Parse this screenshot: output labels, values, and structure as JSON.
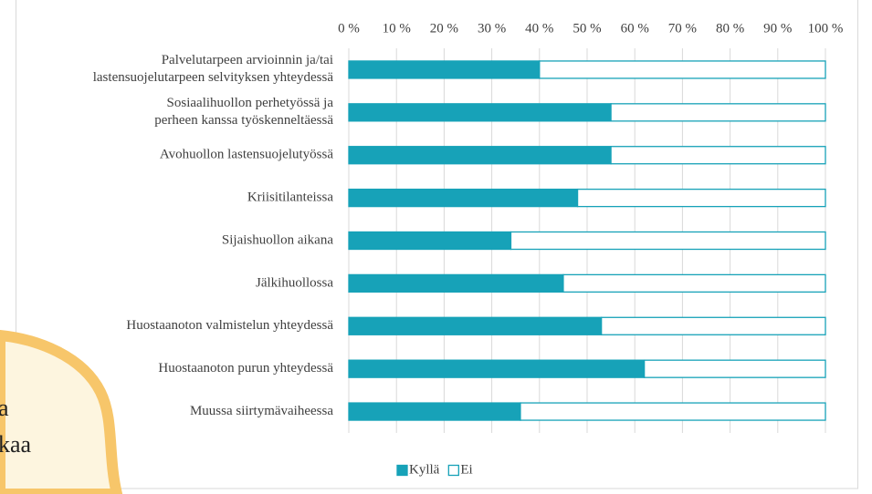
{
  "chart_data": {
    "type": "stacked-barh",
    "categories": [
      "Palvelutarpeen arvioinnin ja/tai\nlastensuojelutarpeen selvityksen yhteydessä",
      "Sosiaalihuollon perhetyössä ja\nperheen kanssa työskenneltäessä",
      "Avohuollon lastensuojelutyössä",
      "Kriisitilanteissa",
      "Sijaishuollon aikana",
      "Jälkihuollossa",
      "Huostaanoton valmistelun yhteydessä",
      "Huostaanoton purun yhteydessä",
      "Muussa siirtymävaiheessa"
    ],
    "series": [
      {
        "name": "Kyllä",
        "color": "#17a2b8",
        "values": [
          40,
          55,
          55,
          48,
          34,
          45,
          53,
          62,
          36
        ]
      },
      {
        "name": "Ei",
        "color": "#ffffff",
        "values": [
          60,
          45,
          45,
          52,
          66,
          55,
          47,
          38,
          64
        ]
      }
    ],
    "edgecolor": "#17a2b8",
    "xlim": [
      0,
      100
    ],
    "xticks": [
      {
        "value": 0,
        "label": "0 %"
      },
      {
        "value": 10,
        "label": "10 %"
      },
      {
        "value": 20,
        "label": "20 %"
      },
      {
        "value": 30,
        "label": "30 %"
      },
      {
        "value": 40,
        "label": "40 %"
      },
      {
        "value": 50,
        "label": "50 %"
      },
      {
        "value": 60,
        "label": "60 %"
      },
      {
        "value": 70,
        "label": "70 %"
      },
      {
        "value": 80,
        "label": "80 %"
      },
      {
        "value": 90,
        "label": "90 %"
      },
      {
        "value": 100,
        "label": "100 %"
      }
    ],
    "grid": true,
    "legend": "bottom"
  },
  "backdrop": {
    "lines": [
      "a",
      "kaa"
    ]
  }
}
